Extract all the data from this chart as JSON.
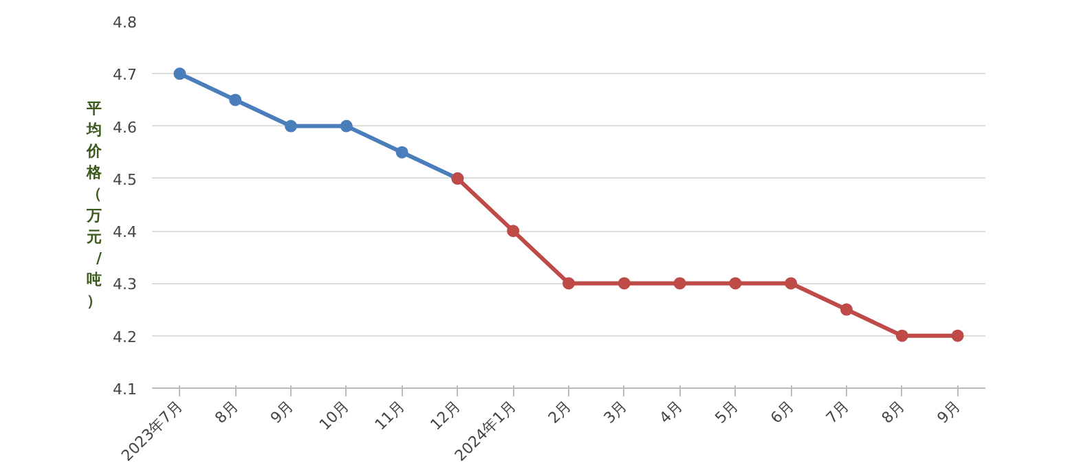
{
  "chart_data": {
    "type": "line",
    "ylabel": "平均价格（万元/吨）",
    "categories": [
      "2023年7月",
      "8月",
      "9月",
      "10月",
      "11月",
      "12月",
      "2024年1月",
      "2月",
      "3月",
      "4月",
      "5月",
      "6月",
      "7月",
      "8月",
      "9月"
    ],
    "series": [
      {
        "color": "#4a7ebb",
        "values": [
          4.7,
          4.65,
          4.6,
          4.6,
          4.55,
          4.5,
          null,
          null,
          null,
          null,
          null,
          null,
          null,
          null,
          null
        ]
      },
      {
        "color": "#be4b48",
        "values": [
          null,
          null,
          null,
          null,
          null,
          4.5,
          4.4,
          4.3,
          4.3,
          4.3,
          4.3,
          4.3,
          4.25,
          4.2,
          4.2
        ]
      }
    ],
    "ylim": [
      4.1,
      4.8
    ],
    "yticks": [
      4.1,
      4.2,
      4.3,
      4.4,
      4.5,
      4.6,
      4.7,
      4.8
    ],
    "grid": "y",
    "marker": "circle",
    "line_style": "solid"
  }
}
